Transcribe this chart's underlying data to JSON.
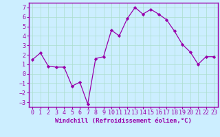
{
  "x": [
    0,
    1,
    2,
    3,
    4,
    5,
    6,
    7,
    8,
    9,
    10,
    11,
    12,
    13,
    14,
    15,
    16,
    17,
    18,
    19,
    20,
    21,
    22,
    23
  ],
  "y": [
    1.5,
    2.2,
    0.8,
    0.7,
    0.7,
    -1.3,
    -0.9,
    -3.2,
    1.6,
    1.8,
    4.6,
    4.0,
    5.8,
    7.0,
    6.3,
    6.8,
    6.3,
    5.7,
    4.5,
    3.1,
    2.3,
    1.0,
    1.8,
    1.8
  ],
  "line_color": "#9900aa",
  "marker_color": "#9900aa",
  "bg_color": "#cceeff",
  "grid_color": "#aaddcc",
  "xlabel": "Windchill (Refroidissement éolien,°C)",
  "xlim": [
    -0.5,
    23.5
  ],
  "ylim": [
    -3.5,
    7.5
  ],
  "yticks": [
    -3,
    -2,
    -1,
    0,
    1,
    2,
    3,
    4,
    5,
    6,
    7
  ],
  "xticks": [
    0,
    1,
    2,
    3,
    4,
    5,
    6,
    7,
    8,
    9,
    10,
    11,
    12,
    13,
    14,
    15,
    16,
    17,
    18,
    19,
    20,
    21,
    22,
    23
  ],
  "spine_color": "#9900aa",
  "font_color": "#9900aa",
  "tick_fontsize": 6.0,
  "xlabel_fontsize": 6.5
}
